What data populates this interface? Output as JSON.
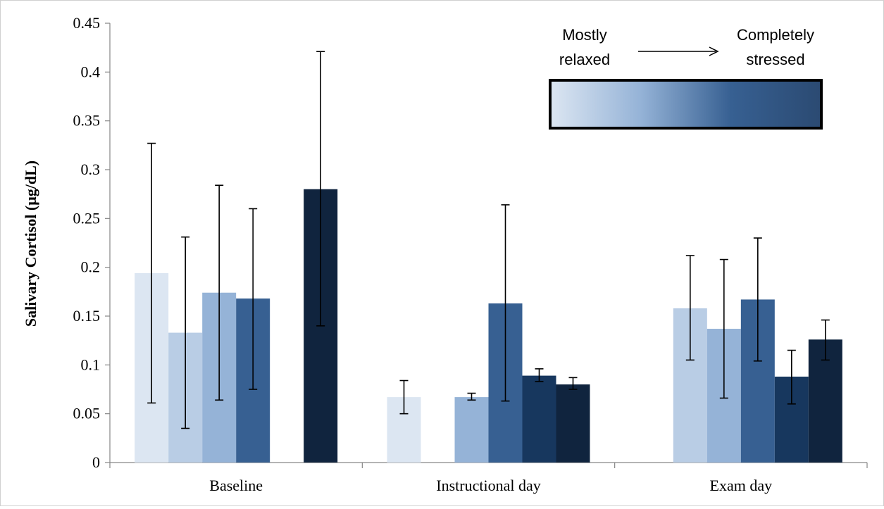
{
  "chart_data": {
    "type": "bar",
    "title": "",
    "xlabel": "",
    "ylabel": "Salivary Cortisol (μg/dL)",
    "ylim": [
      0,
      0.45
    ],
    "yticks": [
      0,
      0.05,
      0.1,
      0.15,
      0.2,
      0.25,
      0.3,
      0.35,
      0.4,
      0.45
    ],
    "ytick_labels": [
      "0",
      "0.05",
      "0.1",
      "0.15",
      "0.2",
      "0.25",
      "0.3",
      "0.35",
      "0.4",
      "0.45"
    ],
    "categories": [
      "Baseline",
      "Instructional day",
      "Exam day"
    ],
    "series": [
      {
        "color": "#dce6f2",
        "values": [
          0.194,
          0.067,
          null
        ],
        "errors": [
          [
            0.061,
            0.327
          ],
          [
            0.05,
            0.084
          ],
          null
        ]
      },
      {
        "color": "#b9cde5",
        "values": [
          0.133,
          null,
          0.158
        ],
        "errors": [
          [
            0.035,
            0.231
          ],
          null,
          [
            0.105,
            0.212
          ]
        ]
      },
      {
        "color": "#95b3d7",
        "values": [
          0.174,
          0.067,
          0.137
        ],
        "errors": [
          [
            0.064,
            0.284
          ],
          [
            0.064,
            0.071
          ],
          [
            0.066,
            0.208
          ]
        ]
      },
      {
        "color": "#376092",
        "values": [
          0.168,
          0.163,
          0.167
        ],
        "errors": [
          [
            0.075,
            0.26
          ],
          [
            0.063,
            0.264
          ],
          [
            0.104,
            0.23
          ]
        ]
      },
      {
        "color": "#17375e",
        "values": [
          null,
          0.089,
          0.088
        ],
        "errors": [
          null,
          [
            0.083,
            0.096
          ],
          [
            0.06,
            0.115
          ]
        ]
      },
      {
        "color": "#10243e",
        "values": [
          0.28,
          0.08,
          0.126
        ],
        "errors": [
          [
            0.14,
            0.421
          ],
          [
            0.075,
            0.087
          ],
          [
            0.105,
            0.146
          ]
        ]
      }
    ],
    "grid": false,
    "legend": {
      "position": "top-right",
      "left_label_line1": "Mostly",
      "left_label_line2": "relaxed",
      "right_label_line1": "Completely",
      "right_label_line2": "stressed",
      "gradient_colors": [
        "#dce6f2",
        "#95b3d7",
        "#376092",
        "#2b4a72"
      ]
    }
  }
}
